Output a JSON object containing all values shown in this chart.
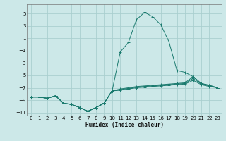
{
  "xlabel": "Humidex (Indice chaleur)",
  "background_color": "#cce8e8",
  "grid_color": "#aacfcf",
  "line_color": "#1a7a6e",
  "xlim": [
    -0.5,
    23.5
  ],
  "ylim": [
    -11.5,
    6.5
  ],
  "yticks": [
    -11,
    -9,
    -7,
    -5,
    -3,
    -1,
    1,
    3,
    5
  ],
  "xticks": [
    0,
    1,
    2,
    3,
    4,
    5,
    6,
    7,
    8,
    9,
    10,
    11,
    12,
    13,
    14,
    15,
    16,
    17,
    18,
    19,
    20,
    21,
    22,
    23
  ],
  "series": [
    {
      "x": [
        0,
        1,
        2,
        3,
        4,
        5,
        6,
        7,
        8,
        9,
        10,
        11,
        12,
        13,
        14,
        15,
        16,
        17,
        18,
        19,
        20,
        21,
        22,
        23
      ],
      "y": [
        -8.5,
        -8.5,
        -8.7,
        -8.3,
        -9.5,
        -9.7,
        -10.2,
        -10.8,
        -10.2,
        -9.5,
        -7.5,
        -1.2,
        0.3,
        4.0,
        5.2,
        4.5,
        3.2,
        0.5,
        -4.2,
        -4.5,
        -5.2,
        -6.3,
        -6.6,
        -7.0
      ]
    },
    {
      "x": [
        0,
        1,
        2,
        3,
        4,
        5,
        6,
        7,
        8,
        9,
        10,
        11,
        12,
        13,
        14,
        15,
        16,
        17,
        18,
        19,
        20,
        21,
        22,
        23
      ],
      "y": [
        -8.5,
        -8.5,
        -8.7,
        -8.3,
        -9.5,
        -9.7,
        -10.2,
        -10.8,
        -10.2,
        -9.5,
        -7.5,
        -7.2,
        -7.0,
        -6.8,
        -6.7,
        -6.6,
        -6.5,
        -6.4,
        -6.3,
        -6.2,
        -5.2,
        -6.3,
        -6.6,
        -7.0
      ]
    },
    {
      "x": [
        0,
        1,
        2,
        3,
        4,
        5,
        6,
        7,
        8,
        9,
        10,
        11,
        12,
        13,
        14,
        15,
        16,
        17,
        18,
        19,
        20,
        21,
        22,
        23
      ],
      "y": [
        -8.5,
        -8.5,
        -8.7,
        -8.3,
        -9.5,
        -9.7,
        -10.2,
        -10.8,
        -10.2,
        -9.5,
        -7.5,
        -7.3,
        -7.1,
        -6.9,
        -6.8,
        -6.7,
        -6.6,
        -6.5,
        -6.4,
        -6.3,
        -5.5,
        -6.4,
        -6.7,
        -7.0
      ]
    },
    {
      "x": [
        0,
        1,
        2,
        3,
        4,
        5,
        6,
        7,
        8,
        9,
        10,
        11,
        12,
        13,
        14,
        15,
        16,
        17,
        18,
        19,
        20,
        21,
        22,
        23
      ],
      "y": [
        -8.5,
        -8.5,
        -8.7,
        -8.3,
        -9.5,
        -9.7,
        -10.2,
        -10.8,
        -10.2,
        -9.5,
        -7.5,
        -7.4,
        -7.2,
        -7.0,
        -6.9,
        -6.8,
        -6.7,
        -6.6,
        -6.5,
        -6.4,
        -5.8,
        -6.5,
        -6.8,
        -7.0
      ]
    }
  ]
}
